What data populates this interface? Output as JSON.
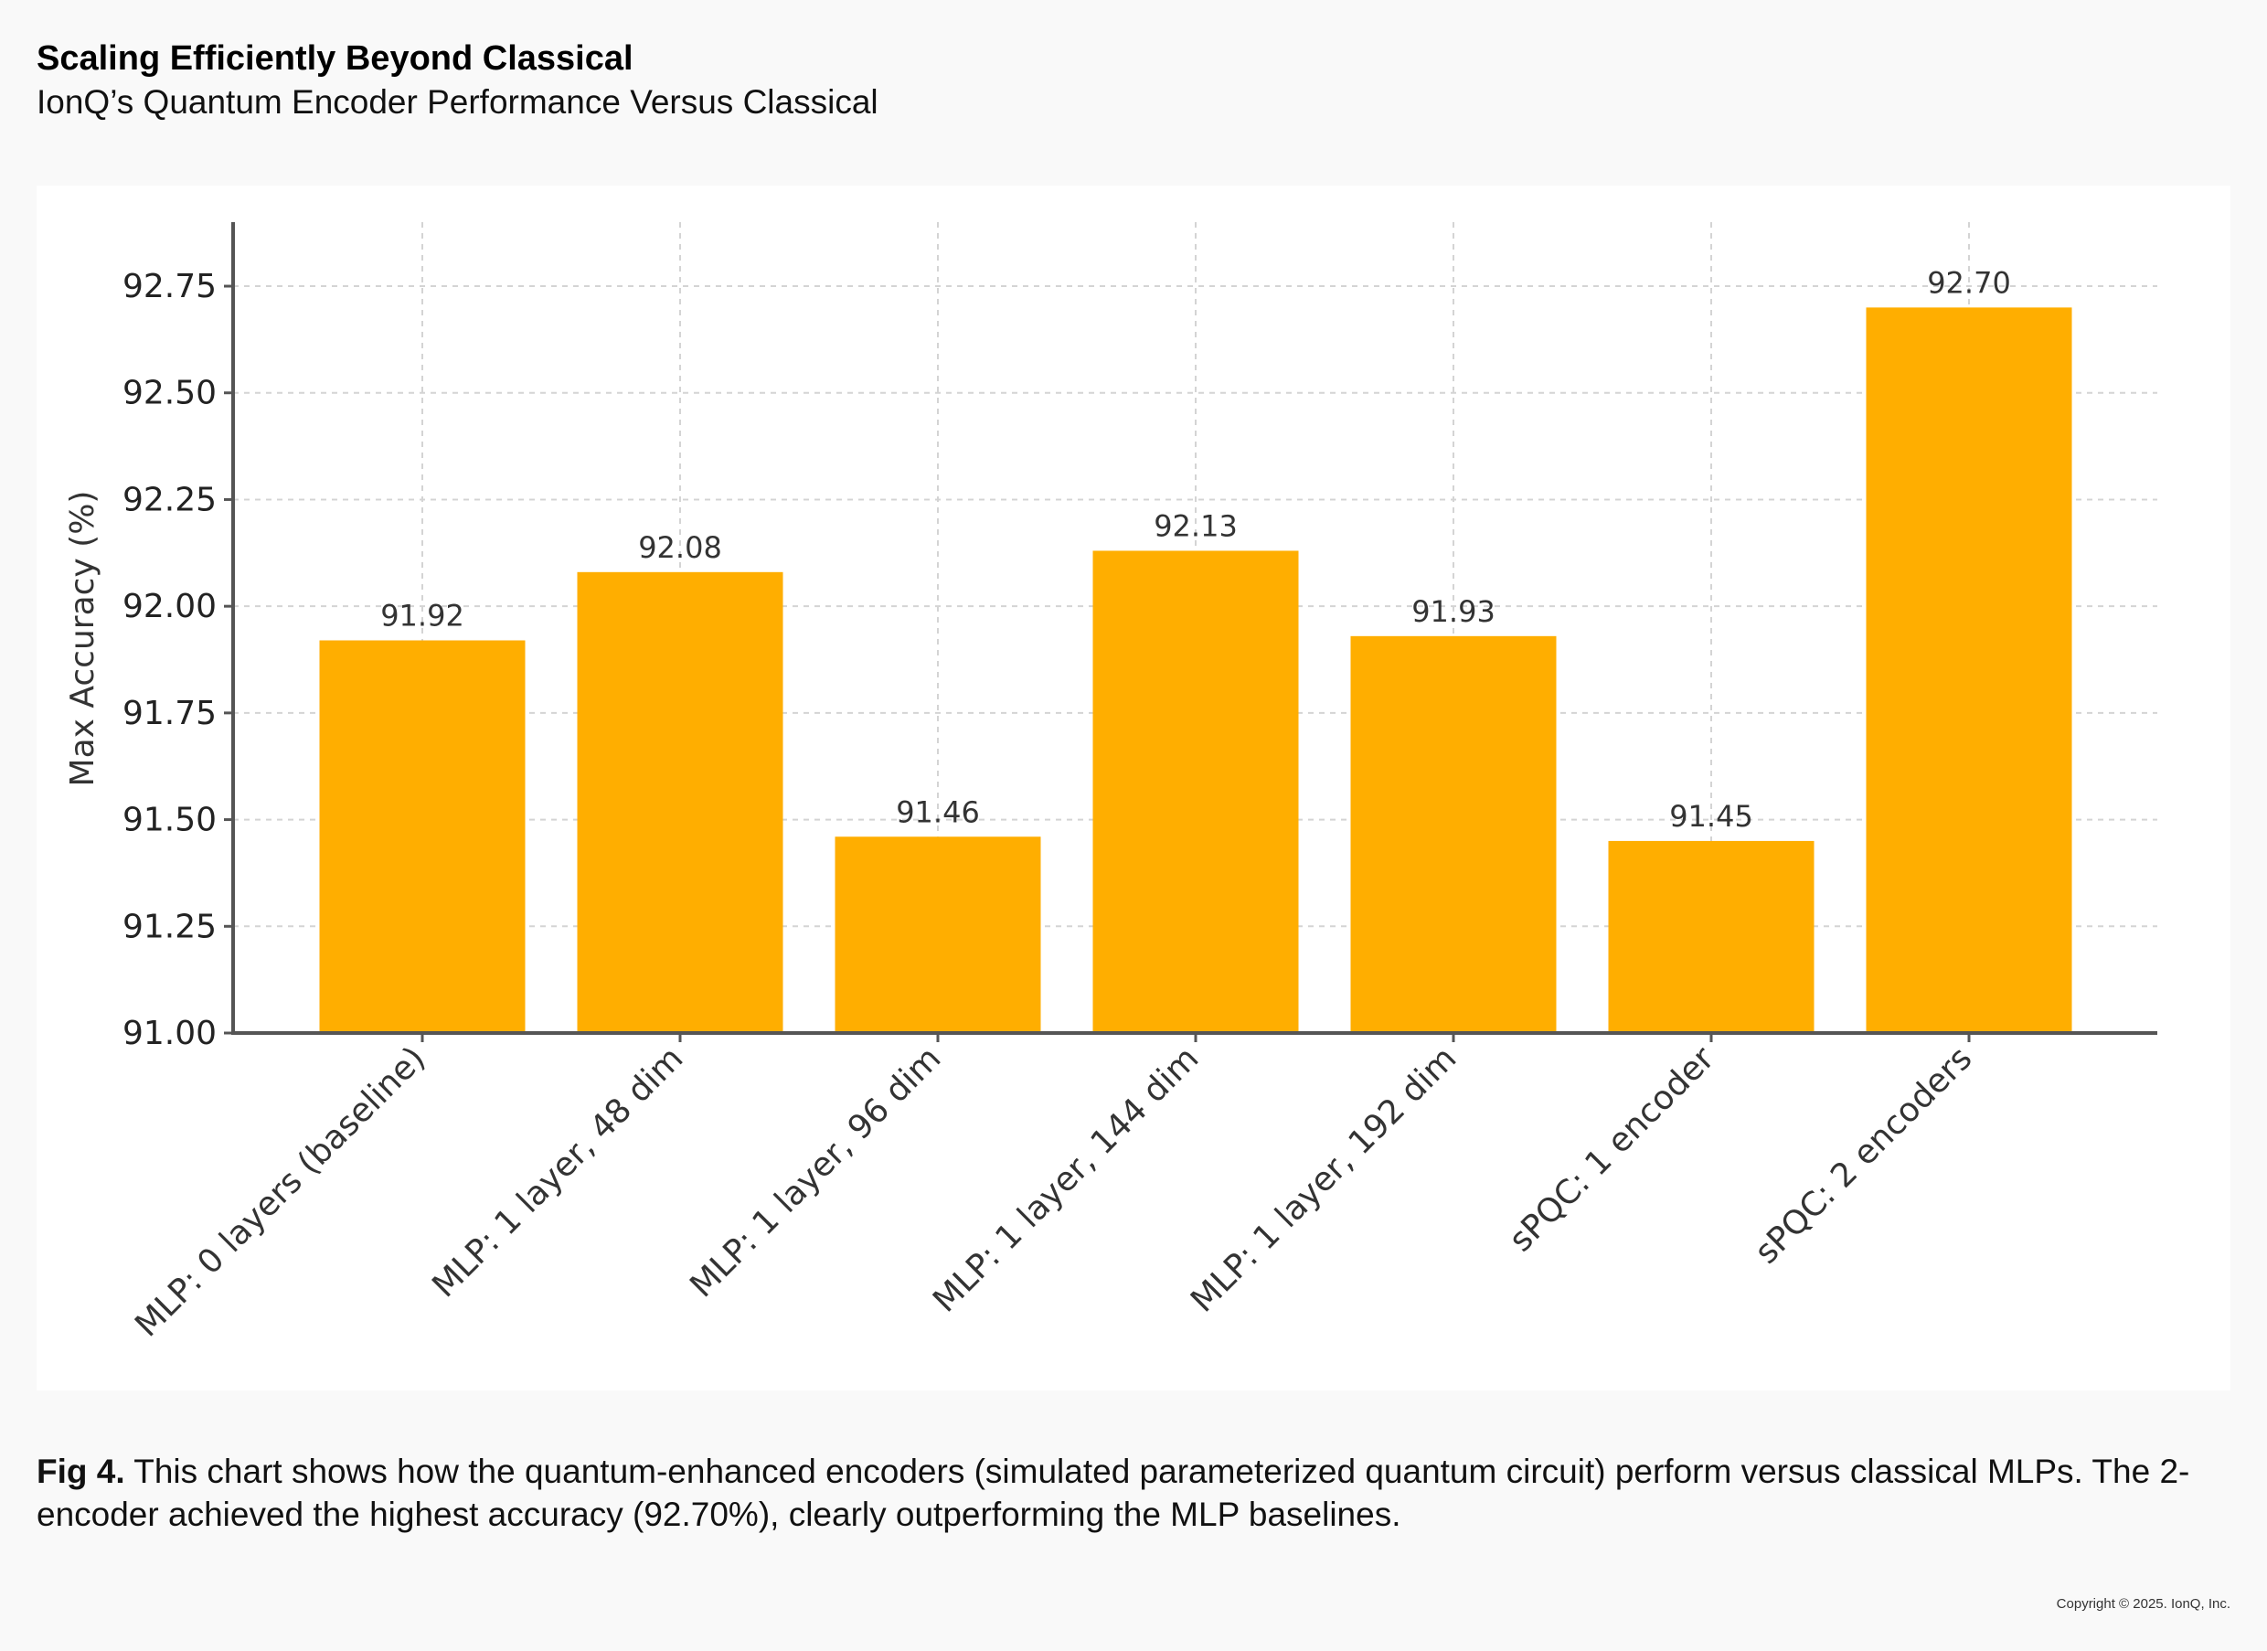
{
  "header": {
    "title": "Scaling Efficiently Beyond Classical",
    "subtitle": "IonQ’s Quantum Encoder Performance Versus Classical"
  },
  "chart_data": {
    "type": "bar",
    "title": "",
    "xlabel": "",
    "ylabel": "Max Accuracy (%)",
    "ylim": [
      91.0,
      92.9
    ],
    "yticks": [
      "91.00",
      "91.25",
      "91.50",
      "91.75",
      "92.00",
      "92.25",
      "92.50",
      "92.75"
    ],
    "categories": [
      "MLP: 0 layers (baseline)",
      "MLP: 1 layer, 48 dim",
      "MLP: 1 layer, 96 dim",
      "MLP: 1 layer, 144 dim",
      "MLP: 1 layer, 192 dim",
      "sPQC: 1 encoder",
      "sPQC: 2 encoders"
    ],
    "values": [
      91.92,
      92.08,
      91.46,
      92.13,
      91.93,
      91.45,
      92.7
    ],
    "value_labels": [
      "91.92",
      "92.08",
      "91.46",
      "92.13",
      "91.93",
      "91.45",
      "92.70"
    ],
    "bar_color": "#ffae00",
    "grid": true
  },
  "caption": {
    "label": "Fig 4.",
    "text": " This chart shows how the  quantum-enhanced encoders (simulated parameterized quantum circuit) perform versus classical MLPs. The 2-encoder achieved the highest accuracy (92.70%), clearly outperforming the MLP baselines."
  },
  "footer": {
    "copyright": "Copyright © 2025. IonQ, Inc."
  }
}
